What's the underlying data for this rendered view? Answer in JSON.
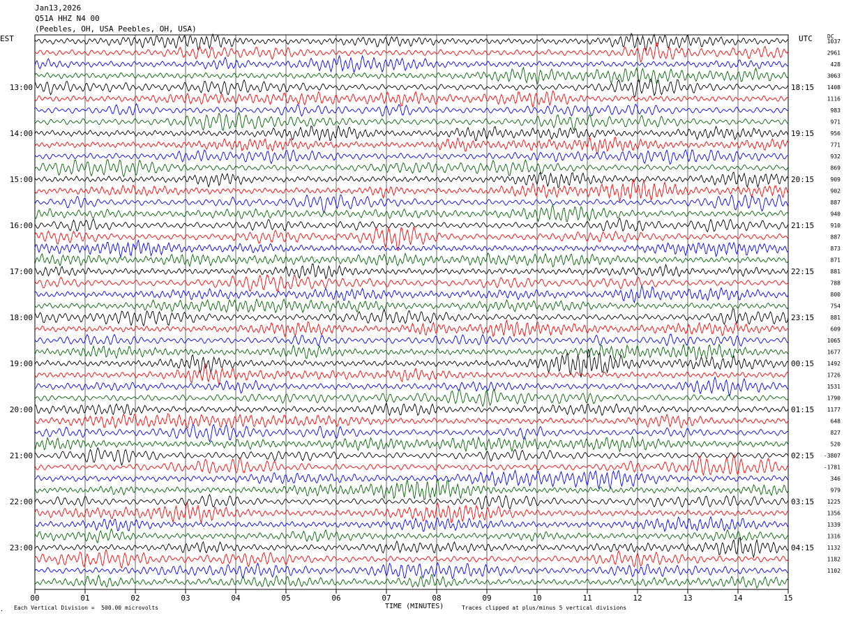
{
  "header": {
    "date": "Jan13,2026",
    "station": "Q51A HHZ N4 00",
    "location": "(Peebles, OH, USA Peebles, OH, USA)"
  },
  "left_axis_label": "EST",
  "right_axis_label": "UTC",
  "right_column_label": "DC",
  "footer": {
    "vertical_division": "Each Vertical Division =  500.00 microvolts",
    "xlabel": "TIME (MINUTES)",
    "clip_note": "Traces clipped at plus/minus 5 vertical divisions"
  },
  "colors": {
    "trace_cycle": [
      "#000000",
      "#ff0000",
      "#0000ff",
      "#006400"
    ],
    "grid": "#000000"
  },
  "chart_data": {
    "type": "line",
    "xlabel": "TIME (MINUTES)",
    "xlim": [
      0,
      15
    ],
    "x_ticks": [
      "00",
      "01",
      "02",
      "03",
      "04",
      "05",
      "06",
      "07",
      "08",
      "09",
      "10",
      "11",
      "12",
      "13",
      "14",
      "15"
    ],
    "left_hour_labels": [
      "13:00",
      "14:00",
      "15:00",
      "16:00",
      "17:00",
      "18:00",
      "19:00",
      "20:00",
      "21:00",
      "22:00",
      "23:00"
    ],
    "right_hour_labels": [
      "18:15",
      "19:15",
      "20:15",
      "21:15",
      "22:15",
      "23:15",
      "00:15",
      "01:15",
      "02:15",
      "03:15",
      "04:15"
    ],
    "traces_per_hour": 4,
    "trace_count": 48,
    "dc_offsets": [
      1037,
      2961,
      428,
      3063,
      1408,
      1116,
      983,
      971,
      956,
      771,
      932,
      869,
      909,
      902,
      887,
      940,
      910,
      887,
      873,
      871,
      881,
      788,
      800,
      754,
      881,
      609,
      1065,
      1677,
      1492,
      1726,
      1531,
      1790,
      1177,
      648,
      827,
      520,
      -3807,
      -1781,
      346,
      979,
      1225,
      1356,
      1339,
      1316,
      1132,
      1182,
      1102
    ]
  }
}
